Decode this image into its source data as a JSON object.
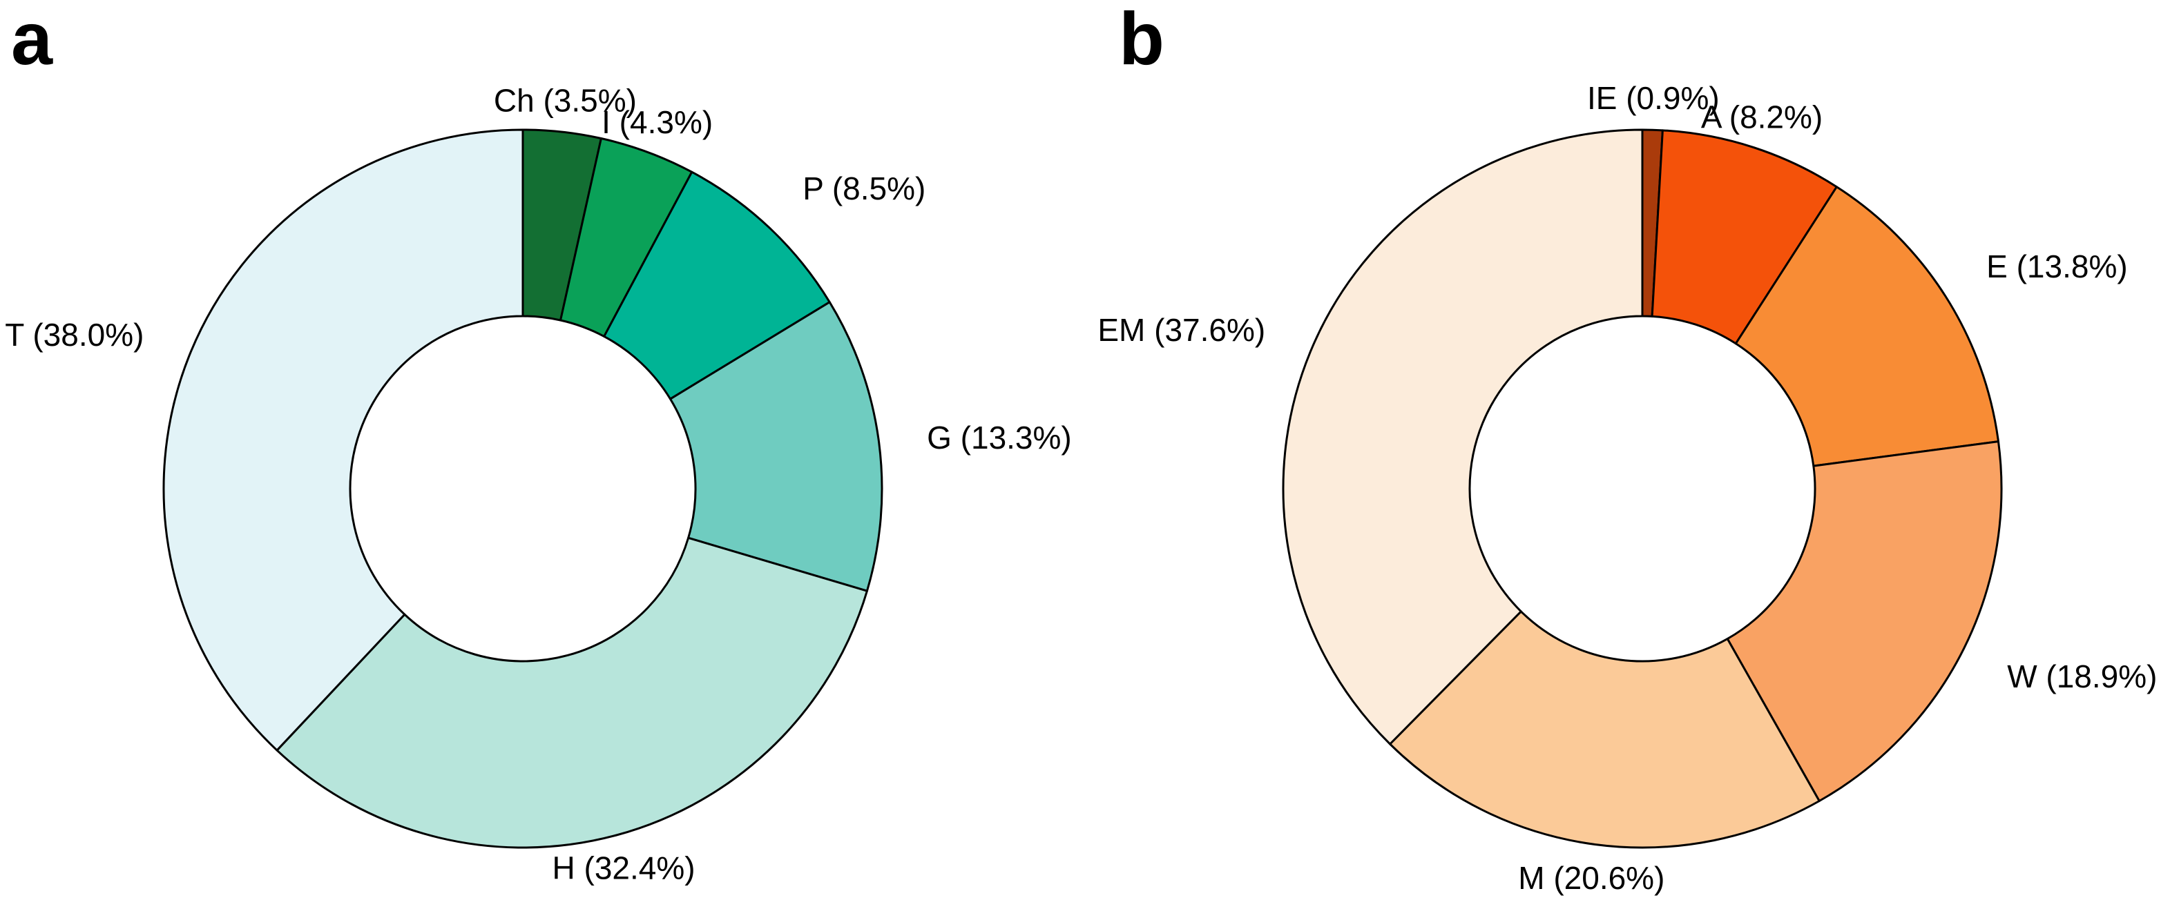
{
  "figure": {
    "background": "#ffffff",
    "text_color": "#000000",
    "slice_outline_color": "#000000"
  },
  "chart_data": [
    {
      "type": "pie",
      "subtype": "donut",
      "panel_label": "a",
      "units": "%",
      "start_angle": "12-o-clock",
      "direction": "clockwise",
      "legend": "none",
      "categories": [
        "Ch",
        "I",
        "P",
        "G",
        "H",
        "T"
      ],
      "values": [
        3.5,
        4.3,
        8.5,
        13.3,
        32.4,
        38.0
      ],
      "labels": [
        "Ch (3.5%)",
        "I (4.3%)",
        "P (8.5%)",
        "G (13.3%)",
        "H (32.4%)",
        "T (38.0%)"
      ],
      "colors": [
        "#136f33",
        "#0aa158",
        "#00b495",
        "#6fccc0",
        "#b7e5db",
        "#e2f3f7"
      ]
    },
    {
      "type": "pie",
      "subtype": "donut",
      "panel_label": "b",
      "units": "%",
      "start_angle": "12-o-clock",
      "direction": "clockwise",
      "legend": "none",
      "categories": [
        "IE",
        "A",
        "E",
        "W",
        "M",
        "EM"
      ],
      "values": [
        0.9,
        8.2,
        13.8,
        18.9,
        20.6,
        37.6
      ],
      "labels": [
        "IE (0.9%)",
        "A (8.2%)",
        "E (13.8%)",
        "W (18.9%)",
        "M (20.6%)",
        "EM (37.6%)"
      ],
      "colors": [
        "#aa3b0b",
        "#f4520a",
        "#f88c35",
        "#f9a263",
        "#fbca98",
        "#fcecdb"
      ]
    }
  ]
}
